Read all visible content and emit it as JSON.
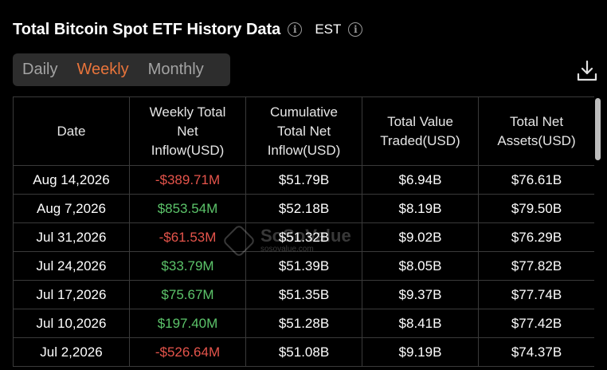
{
  "header": {
    "title": "Total Bitcoin Spot ETF History Data",
    "timezone": "EST"
  },
  "tabs": [
    {
      "label": "Daily",
      "active": false
    },
    {
      "label": "Weekly",
      "active": true
    },
    {
      "label": "Monthly",
      "active": false
    }
  ],
  "table": {
    "columns": [
      [
        "Date"
      ],
      [
        "Weekly Total",
        "Net",
        "Inflow(USD)"
      ],
      [
        "Cumulative",
        "Total Net",
        "Inflow(USD)"
      ],
      [
        "Total Value",
        "Traded(USD)"
      ],
      [
        "Total Net",
        "Assets(USD)"
      ]
    ],
    "rows": [
      {
        "date": "Aug 14,2026",
        "weekly": "-$389.71M",
        "cumulative": "$51.79B",
        "traded": "$6.94B",
        "assets": "$76.61B"
      },
      {
        "date": "Aug 7,2026",
        "weekly": "$853.54M",
        "cumulative": "$52.18B",
        "traded": "$8.19B",
        "assets": "$79.50B"
      },
      {
        "date": "Jul 31,2026",
        "weekly": "-$61.53M",
        "cumulative": "$51.32B",
        "traded": "$9.02B",
        "assets": "$76.29B"
      },
      {
        "date": "Jul 24,2026",
        "weekly": "$33.79M",
        "cumulative": "$51.39B",
        "traded": "$8.05B",
        "assets": "$77.82B"
      },
      {
        "date": "Jul 17,2026",
        "weekly": "$75.67M",
        "cumulative": "$51.35B",
        "traded": "$9.37B",
        "assets": "$77.74B"
      },
      {
        "date": "Jul 10,2026",
        "weekly": "$197.40M",
        "cumulative": "$51.28B",
        "traded": "$8.41B",
        "assets": "$77.42B"
      },
      {
        "date": "Jul 2,2026",
        "weekly": "-$526.64M",
        "cumulative": "$51.08B",
        "traded": "$9.19B",
        "assets": "$74.37B"
      }
    ]
  },
  "watermark": {
    "name": "SoSoValue",
    "url": "sosovalue.com"
  },
  "colors": {
    "accent": "#e8743b",
    "negative": "#e5544b",
    "positive": "#5cc46a"
  },
  "icons": {
    "info": "info-icon",
    "download": "download-icon"
  }
}
